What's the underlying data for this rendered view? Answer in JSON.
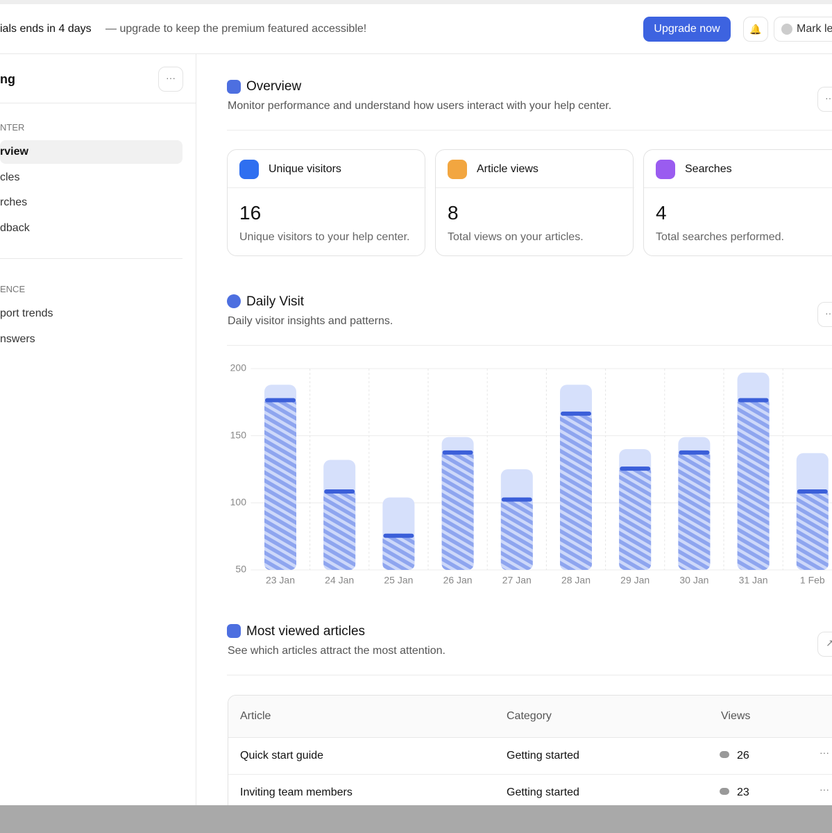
{
  "banner": {
    "bold": "ials ends in 4 days",
    "text": "— upgrade to keep the premium featured accessible!",
    "button": "Upgrade now",
    "user": "Mark le"
  },
  "sidebar": {
    "title": "ng",
    "sections": [
      {
        "heading": "NTER",
        "items": [
          "rview",
          "cles",
          "rches",
          "dback"
        ]
      },
      {
        "heading": "ENCE",
        "items": [
          "port trends",
          "nswers"
        ]
      }
    ]
  },
  "overview": {
    "title": "Overview",
    "subtitle": "Monitor performance and understand how users interact with your help center.",
    "cards": [
      {
        "label": "Unique visitors",
        "value": 16,
        "caption": "Unique visitors to your help center."
      },
      {
        "label": "Article views",
        "value": 8,
        "caption": "Total views on your articles."
      },
      {
        "label": "Searches",
        "value": 4,
        "caption": "Total searches performed."
      }
    ]
  },
  "daily_visit": {
    "title": "Daily Visit",
    "subtitle": "Daily visitor insights and patterns."
  },
  "chart_data": {
    "type": "bar",
    "categories": [
      "23 Jan",
      "24 Jan",
      "25 Jan",
      "26 Jan",
      "27 Jan",
      "28 Jan",
      "29 Jan",
      "30 Jan",
      "31 Jan",
      "1 Feb"
    ],
    "series": [
      {
        "color": "#d6e0fb",
        "values": [
          188,
          132,
          104,
          149,
          125,
          188,
          140,
          149,
          197,
          137
        ]
      },
      {
        "color": "#8ea5ef",
        "values": [
          178,
          110,
          77,
          139,
          104,
          168,
          127,
          139,
          178,
          110
        ]
      }
    ],
    "ylim": [
      50,
      200
    ],
    "yticks": [
      50,
      100,
      150,
      200
    ],
    "grid": true
  },
  "articles": {
    "title": "Most viewed articles",
    "subtitle": "See which articles attract the most attention.",
    "table": {
      "header": [
        "Article",
        "Category",
        "Views"
      ],
      "rows": [
        [
          "Quick start guide",
          "Getting started",
          26
        ],
        [
          "Inviting team members",
          "Getting started",
          23
        ]
      ]
    }
  }
}
